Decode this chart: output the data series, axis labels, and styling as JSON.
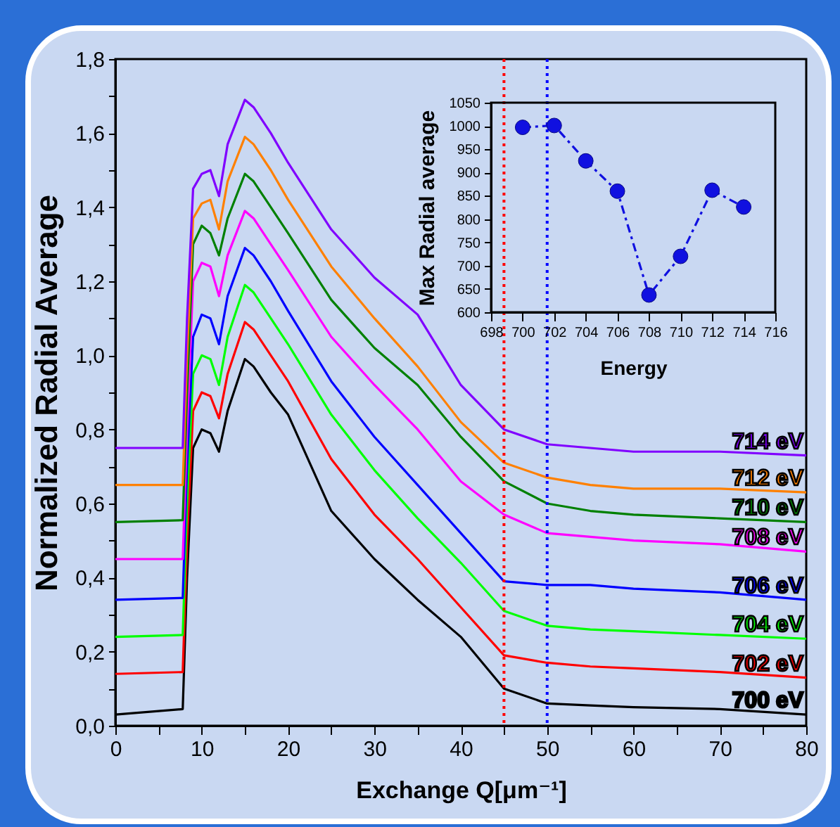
{
  "chart_data": [
    {
      "type": "line",
      "xlabel": "Exchange Q[μm⁻¹]",
      "ylabel": "Normalized Radial Average",
      "x": [
        0,
        7.8,
        8.3,
        9,
        10,
        11,
        12,
        13,
        15,
        16,
        18,
        20,
        25,
        30,
        35,
        40,
        45,
        50,
        55,
        60,
        70,
        80
      ],
      "series": [
        {
          "name": "700 eV",
          "color": "#000000",
          "values": [
            0.03,
            0.045,
            0.4,
            0.75,
            0.8,
            0.79,
            0.74,
            0.85,
            0.99,
            0.97,
            0.9,
            0.84,
            0.58,
            0.45,
            0.34,
            0.24,
            0.1,
            0.06,
            0.055,
            0.05,
            0.045,
            0.03
          ]
        },
        {
          "name": "702 eV",
          "color": "#ff0000",
          "values": [
            0.14,
            0.145,
            0.5,
            0.85,
            0.9,
            0.89,
            0.83,
            0.95,
            1.09,
            1.07,
            1.0,
            0.93,
            0.72,
            0.57,
            0.45,
            0.32,
            0.19,
            0.17,
            0.16,
            0.155,
            0.145,
            0.13
          ]
        },
        {
          "name": "704 eV",
          "color": "#00ff00",
          "values": [
            0.24,
            0.245,
            0.6,
            0.95,
            1.0,
            0.99,
            0.92,
            1.05,
            1.19,
            1.17,
            1.1,
            1.03,
            0.84,
            0.69,
            0.56,
            0.44,
            0.31,
            0.27,
            0.26,
            0.255,
            0.245,
            0.235
          ]
        },
        {
          "name": "706 eV",
          "color": "#0000ff",
          "values": [
            0.34,
            0.345,
            0.7,
            1.05,
            1.11,
            1.1,
            1.03,
            1.16,
            1.29,
            1.27,
            1.2,
            1.12,
            0.93,
            0.78,
            0.65,
            0.52,
            0.39,
            0.38,
            0.38,
            0.37,
            0.36,
            0.34
          ]
        },
        {
          "name": "708 eV",
          "color": "#ff00ff",
          "values": [
            0.45,
            0.45,
            0.8,
            1.2,
            1.25,
            1.24,
            1.16,
            1.27,
            1.39,
            1.37,
            1.3,
            1.23,
            1.05,
            0.92,
            0.8,
            0.66,
            0.57,
            0.52,
            0.51,
            0.5,
            0.49,
            0.47
          ]
        },
        {
          "name": "710 eV",
          "color": "#008000",
          "values": [
            0.55,
            0.555,
            0.9,
            1.3,
            1.35,
            1.33,
            1.27,
            1.37,
            1.49,
            1.47,
            1.4,
            1.33,
            1.15,
            1.02,
            0.92,
            0.78,
            0.66,
            0.6,
            0.58,
            0.57,
            0.56,
            0.55
          ]
        },
        {
          "name": "712 eV",
          "color": "#ff8000",
          "values": [
            0.65,
            0.65,
            1.0,
            1.37,
            1.41,
            1.42,
            1.34,
            1.47,
            1.59,
            1.57,
            1.5,
            1.42,
            1.24,
            1.1,
            0.97,
            0.82,
            0.71,
            0.67,
            0.65,
            0.64,
            0.64,
            0.63
          ]
        },
        {
          "name": "714 eV",
          "color": "#8000ff",
          "values": [
            0.75,
            0.75,
            1.1,
            1.45,
            1.49,
            1.5,
            1.43,
            1.57,
            1.69,
            1.67,
            1.6,
            1.52,
            1.34,
            1.21,
            1.11,
            0.92,
            0.8,
            0.76,
            0.75,
            0.74,
            0.74,
            0.73
          ]
        }
      ],
      "xlim": [
        0,
        80
      ],
      "xticks": [
        0,
        {
          "value": 5,
          "label": null
        },
        10,
        {
          "value": 15,
          "label": null
        },
        20,
        {
          "value": 25,
          "label": null
        },
        30,
        {
          "value": 35,
          "label": null
        },
        40,
        {
          "value": 45,
          "label": null
        },
        50,
        {
          "value": 55,
          "label": null
        },
        60,
        {
          "value": 65,
          "label": null
        },
        70,
        {
          "value": 75,
          "label": null
        },
        80
      ],
      "ylim": [
        0,
        1.8
      ],
      "yticks": [
        {
          "value": 0,
          "label": "0,0"
        },
        {
          "value": 0.1,
          "label": null
        },
        {
          "value": 0.2,
          "label": "0,2"
        },
        {
          "value": 0.3,
          "label": null
        },
        {
          "value": 0.4,
          "label": "0,4"
        },
        {
          "value": 0.5,
          "label": null
        },
        {
          "value": 0.6,
          "label": "0,6"
        },
        {
          "value": 0.7,
          "label": null
        },
        {
          "value": 0.8,
          "label": "0,8"
        },
        {
          "value": 0.9,
          "label": null
        },
        {
          "value": 1.0,
          "label": "1,0"
        },
        {
          "value": 1.1,
          "label": null
        },
        {
          "value": 1.2,
          "label": "1,2"
        },
        {
          "value": 1.3,
          "label": null
        },
        {
          "value": 1.4,
          "label": "1,4"
        },
        {
          "value": 1.5,
          "label": null
        },
        {
          "value": 1.6,
          "label": "1,6"
        },
        {
          "value": 1.7,
          "label": null
        },
        {
          "value": 1.8,
          "label": "1,8"
        }
      ],
      "ref_lines": [
        {
          "axis": "x",
          "value": 45,
          "color": "#ff0000",
          "line_style": "dotted"
        },
        {
          "axis": "x",
          "value": 50,
          "color": "#0000ff",
          "line_style": "dotted"
        }
      ],
      "marker": "none",
      "line_style": "solid"
    },
    {
      "type": "line",
      "xlabel": "Energy",
      "ylabel": "Max Radial average",
      "x": [
        700,
        702,
        704,
        706,
        708,
        710,
        712,
        714
      ],
      "series": [
        {
          "color": "#1010e0",
          "values": [
            997,
            1001,
            925,
            860,
            637,
            720,
            862,
            826
          ]
        }
      ],
      "xlim": [
        698,
        716
      ],
      "xticks": [
        698,
        700,
        702,
        704,
        706,
        708,
        710,
        712,
        714,
        716
      ],
      "ylim": [
        600,
        1050
      ],
      "yticks": [
        600,
        650,
        700,
        750,
        800,
        850,
        900,
        950,
        1000,
        1050
      ],
      "marker": "circle",
      "line_style": "dashed"
    }
  ]
}
